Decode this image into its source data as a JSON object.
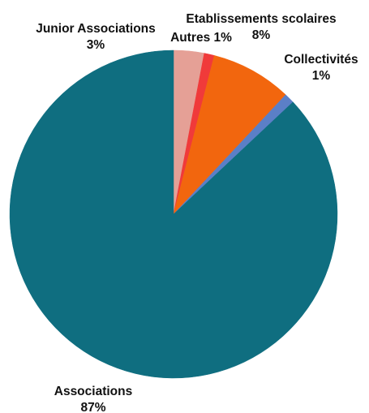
{
  "chart_data": {
    "type": "pie",
    "title": "",
    "start_angle_deg": 0,
    "direction": "clockwise",
    "slices": [
      {
        "label": "Junior Associations",
        "value": 3,
        "pct_label": "3%",
        "color": "#E5A096"
      },
      {
        "label": "Autres",
        "value": 1,
        "pct_label": "1%",
        "color": "#F03A3A"
      },
      {
        "label": "Etablissements scolaires",
        "value": 8,
        "pct_label": "8%",
        "color": "#F2660E"
      },
      {
        "label": "Collectivités",
        "value": 1,
        "pct_label": "1%",
        "color": "#5B7FC7"
      },
      {
        "label": "Associations",
        "value": 87,
        "pct_label": "87%",
        "color": "#0F6E80"
      }
    ],
    "legend": "none"
  }
}
